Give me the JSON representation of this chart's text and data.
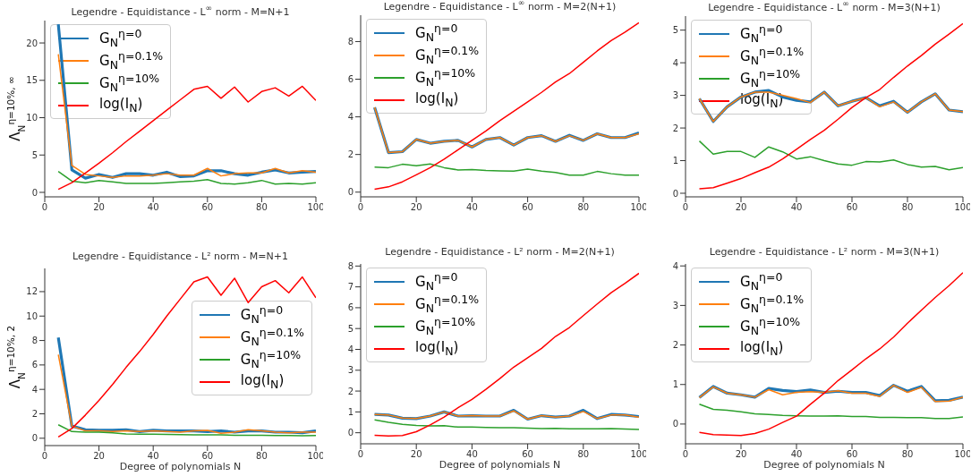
{
  "chart_data": [
    {
      "type": "line",
      "title": "Legendre - Equidistance - L$^{∞}$ norm - M=N+1",
      "ylabel": "Λ$_{N}$$^{η=10%, ∞}$",
      "x": [
        5,
        10,
        15,
        20,
        25,
        30,
        35,
        40,
        45,
        50,
        55,
        60,
        65,
        70,
        75,
        80,
        85,
        90,
        95,
        100
      ],
      "xlim": [
        0,
        100
      ],
      "xticks": [
        0,
        20,
        40,
        60,
        80,
        100
      ],
      "ylim": [
        -0.6,
        23
      ],
      "yticks": [
        0,
        5,
        10,
        15,
        20
      ],
      "legend": "top left",
      "series": [
        {
          "name": "G$_{N}$$^{η=0}$",
          "color": "#1f77b4",
          "values": [
            22.5,
            3.0,
            1.9,
            2.4,
            2.0,
            2.5,
            2.5,
            2.3,
            2.7,
            2.1,
            2.2,
            2.9,
            2.9,
            2.5,
            2.3,
            2.7,
            3.0,
            2.6,
            2.7,
            2.8
          ]
        },
        {
          "name": "G$_{N}$$^{η=0.1%}$",
          "color": "#ff7f0e",
          "values": [
            18.5,
            3.6,
            2.4,
            2.2,
            2.0,
            2.2,
            2.2,
            2.3,
            2.5,
            2.3,
            2.3,
            3.2,
            2.2,
            2.5,
            2.6,
            2.6,
            3.2,
            2.6,
            2.9,
            2.7
          ]
        },
        {
          "name": "G$_{N}$$^{η=10%}$",
          "color": "#2ca02c",
          "values": [
            2.8,
            1.5,
            1.3,
            1.6,
            1.4,
            1.2,
            1.2,
            1.2,
            1.3,
            1.4,
            1.5,
            1.7,
            1.2,
            1.1,
            1.3,
            1.6,
            1.1,
            1.2,
            1.1,
            1.3
          ]
        },
        {
          "name": "log(I$_{N}$)",
          "color": "#ff0000",
          "values": [
            0.4,
            1.3,
            2.6,
            3.9,
            5.3,
            6.8,
            8.2,
            9.6,
            11.0,
            12.4,
            13.8,
            14.2,
            12.6,
            14.1,
            12.1,
            13.5,
            14.0,
            12.9,
            14.2,
            12.3
          ]
        }
      ]
    },
    {
      "type": "line",
      "title": "Legendre - Equidistance - L$^{∞}$ norm - M=2(N+1)",
      "x": [
        5,
        10,
        15,
        20,
        25,
        30,
        35,
        40,
        45,
        50,
        55,
        60,
        65,
        70,
        75,
        80,
        85,
        90,
        95,
        100
      ],
      "xlim": [
        0,
        100
      ],
      "xticks": [
        0,
        20,
        40,
        60,
        80,
        100
      ],
      "ylim": [
        -0.25,
        9.4
      ],
      "yticks": [
        0,
        2,
        4,
        6,
        8
      ],
      "legend": "top left",
      "series": [
        {
          "name": "G$_{N}$$^{η=0}$",
          "color": "#1f77b4",
          "values": [
            4.5,
            2.1,
            2.15,
            2.8,
            2.6,
            2.7,
            2.75,
            2.4,
            2.8,
            2.9,
            2.5,
            2.9,
            3.0,
            2.7,
            3.02,
            2.75,
            3.1,
            2.9,
            2.9,
            3.15
          ]
        },
        {
          "name": "G$_{N}$$^{η=0.1%}$",
          "color": "#ff7f0e",
          "values": [
            4.5,
            2.1,
            2.15,
            2.8,
            2.6,
            2.7,
            2.75,
            2.4,
            2.8,
            2.9,
            2.5,
            2.9,
            3.0,
            2.7,
            3.0,
            2.75,
            3.1,
            2.9,
            2.9,
            3.1
          ]
        },
        {
          "name": "G$_{N}$$^{η=10%}$",
          "color": "#2ca02c",
          "values": [
            1.33,
            1.3,
            1.48,
            1.4,
            1.5,
            1.3,
            1.18,
            1.2,
            1.15,
            1.13,
            1.12,
            1.22,
            1.12,
            1.05,
            0.9,
            0.9,
            1.1,
            0.98,
            0.9,
            0.9
          ]
        },
        {
          "name": "log(I$_{N}$)",
          "color": "#ff0000",
          "values": [
            0.15,
            0.28,
            0.55,
            0.92,
            1.3,
            1.75,
            2.25,
            2.75,
            3.25,
            3.8,
            4.3,
            4.8,
            5.3,
            5.85,
            6.3,
            6.9,
            7.5,
            8.05,
            8.5,
            9.0
          ]
        }
      ]
    },
    {
      "type": "line",
      "title": "Legendre - Equidistance - L$^{∞}$ norm - M=3(N+1)",
      "x": [
        5,
        10,
        15,
        20,
        25,
        30,
        35,
        40,
        45,
        50,
        55,
        60,
        65,
        70,
        75,
        80,
        85,
        90,
        95,
        100
      ],
      "xlim": [
        0,
        100
      ],
      "xticks": [
        0,
        20,
        40,
        60,
        80,
        100
      ],
      "ylim": [
        -0.11,
        5.43
      ],
      "yticks": [
        0,
        1,
        2,
        3,
        4,
        5
      ],
      "legend": "top left",
      "series": [
        {
          "name": "G$_{N}$$^{η=0}$",
          "color": "#1f77b4",
          "values": [
            2.9,
            2.2,
            2.65,
            2.95,
            3.1,
            3.15,
            2.95,
            2.85,
            2.8,
            3.1,
            2.68,
            2.82,
            2.93,
            2.68,
            2.82,
            2.48,
            2.8,
            3.05,
            2.55,
            2.5
          ]
        },
        {
          "name": "G$_{N}$$^{η=0.1%}$",
          "color": "#ff7f0e",
          "values": [
            2.9,
            2.2,
            2.65,
            2.95,
            3.1,
            3.1,
            3.0,
            2.9,
            2.78,
            3.1,
            2.68,
            2.82,
            2.93,
            2.65,
            2.8,
            2.48,
            2.8,
            3.05,
            2.55,
            2.5
          ]
        },
        {
          "name": "G$_{N}$$^{η=10%}$",
          "color": "#2ca02c",
          "values": [
            1.6,
            1.2,
            1.28,
            1.28,
            1.1,
            1.42,
            1.27,
            1.05,
            1.12,
            1.0,
            0.9,
            0.86,
            0.97,
            0.96,
            1.02,
            0.88,
            0.8,
            0.82,
            0.72,
            0.79
          ]
        },
        {
          "name": "log(I$_{N}$)",
          "color": "#ff0000",
          "values": [
            0.14,
            0.17,
            0.31,
            0.45,
            0.63,
            0.8,
            1.05,
            1.35,
            1.65,
            1.93,
            2.27,
            2.63,
            2.93,
            3.18,
            3.55,
            3.9,
            4.22,
            4.57,
            4.88,
            5.2
          ]
        }
      ]
    },
    {
      "type": "line",
      "title": "Legendre - Equidistance - L² norm - M=N+1",
      "xlabel": "Degree of polynomials N",
      "ylabel": "Λ$_{N}$$^{η=10%, 2}$",
      "x": [
        5,
        10,
        15,
        20,
        25,
        30,
        35,
        40,
        45,
        50,
        55,
        60,
        65,
        70,
        75,
        80,
        85,
        90,
        95,
        100
      ],
      "xlim": [
        0,
        100
      ],
      "xticks": [
        0,
        20,
        40,
        60,
        80,
        100
      ],
      "ylim": [
        -0.6,
        13.9
      ],
      "yticks": [
        0,
        2,
        4,
        6,
        8,
        10,
        12
      ],
      "legend": "right",
      "series": [
        {
          "name": "G$_{N}$$^{η=0}$",
          "color": "#1f77b4",
          "values": [
            8.25,
            1.0,
            0.7,
            0.65,
            0.65,
            0.7,
            0.55,
            0.65,
            0.6,
            0.6,
            0.6,
            0.55,
            0.6,
            0.5,
            0.6,
            0.6,
            0.5,
            0.5,
            0.45,
            0.6
          ]
        },
        {
          "name": "G$_{N}$$^{η=0.1%}$",
          "color": "#ff7f0e",
          "values": [
            6.85,
            1.0,
            0.6,
            0.6,
            0.55,
            0.6,
            0.55,
            0.6,
            0.55,
            0.5,
            0.6,
            0.65,
            0.4,
            0.5,
            0.7,
            0.6,
            0.5,
            0.45,
            0.5,
            0.5
          ]
        },
        {
          "name": "G$_{N}$$^{η=10%}$",
          "color": "#2ca02c",
          "values": [
            1.1,
            0.55,
            0.5,
            0.5,
            0.45,
            0.35,
            0.33,
            0.33,
            0.32,
            0.3,
            0.28,
            0.28,
            0.28,
            0.25,
            0.25,
            0.25,
            0.22,
            0.22,
            0.2,
            0.22
          ]
        },
        {
          "name": "log(I$_{N}$)",
          "color": "#ff0000",
          "values": [
            0.1,
            0.8,
            1.9,
            3.1,
            4.4,
            5.8,
            7.1,
            8.5,
            10.0,
            11.4,
            12.8,
            13.2,
            11.7,
            13.1,
            11.1,
            12.4,
            12.9,
            11.9,
            13.2,
            11.5
          ]
        }
      ]
    },
    {
      "type": "line",
      "title": "Legendre - Equidistance - L² norm - M=2(N+1)",
      "xlabel": "Degree of polynomials N",
      "x": [
        5,
        10,
        15,
        20,
        25,
        30,
        35,
        40,
        45,
        50,
        55,
        60,
        65,
        70,
        75,
        80,
        85,
        90,
        95,
        100
      ],
      "xlim": [
        0,
        100
      ],
      "xticks": [
        0,
        20,
        40,
        60,
        80,
        100
      ],
      "ylim": [
        -0.53,
        8.1
      ],
      "yticks": [
        0,
        1,
        2,
        3,
        4,
        5,
        6,
        7,
        8
      ],
      "legend": "top left",
      "series": [
        {
          "name": "G$_{N}$$^{η=0}$",
          "color": "#1f77b4",
          "values": [
            0.88,
            0.85,
            0.7,
            0.68,
            0.8,
            1.0,
            0.8,
            0.82,
            0.8,
            0.8,
            1.08,
            0.65,
            0.82,
            0.75,
            0.8,
            1.08,
            0.68,
            0.88,
            0.85,
            0.78
          ]
        },
        {
          "name": "G$_{N}$$^{η=0.1%}$",
          "color": "#ff7f0e",
          "values": [
            0.88,
            0.85,
            0.7,
            0.68,
            0.8,
            1.0,
            0.8,
            0.82,
            0.8,
            0.8,
            1.05,
            0.65,
            0.82,
            0.75,
            0.8,
            1.02,
            0.68,
            0.85,
            0.85,
            0.75
          ]
        },
        {
          "name": "G$_{N}$$^{η=10%}$",
          "color": "#2ca02c",
          "values": [
            0.62,
            0.5,
            0.4,
            0.35,
            0.33,
            0.34,
            0.27,
            0.27,
            0.25,
            0.24,
            0.24,
            0.22,
            0.2,
            0.21,
            0.19,
            0.19,
            0.19,
            0.2,
            0.18,
            0.16
          ]
        },
        {
          "name": "log(I$_{N}$)",
          "color": "#ff0000",
          "values": [
            -0.12,
            -0.15,
            -0.13,
            0.05,
            0.38,
            0.75,
            1.2,
            1.6,
            2.08,
            2.6,
            3.15,
            3.6,
            4.05,
            4.62,
            5.05,
            5.62,
            6.18,
            6.72,
            7.17,
            7.65
          ]
        }
      ]
    },
    {
      "type": "line",
      "title": "Legendre - Equidistance - L² norm - M=3(N+1)",
      "xlabel": "Degree of polynomials N",
      "x": [
        5,
        10,
        15,
        20,
        25,
        30,
        35,
        40,
        45,
        50,
        55,
        60,
        65,
        70,
        75,
        80,
        85,
        90,
        95,
        100
      ],
      "xlim": [
        0,
        100
      ],
      "xticks": [
        0,
        20,
        40,
        60,
        80,
        100
      ],
      "ylim": [
        -0.5,
        4.05
      ],
      "yticks": [
        0,
        1,
        2,
        3,
        4
      ],
      "legend": "top left",
      "series": [
        {
          "name": "G$_{N}$$^{η=0}$",
          "color": "#1f77b4",
          "values": [
            0.67,
            0.95,
            0.78,
            0.74,
            0.68,
            0.9,
            0.85,
            0.82,
            0.86,
            0.8,
            0.83,
            0.8,
            0.8,
            0.72,
            0.98,
            0.83,
            0.95,
            0.59,
            0.6,
            0.68
          ]
        },
        {
          "name": "G$_{N}$$^{η=0.1%}$",
          "color": "#ff7f0e",
          "values": [
            0.67,
            0.94,
            0.78,
            0.74,
            0.68,
            0.87,
            0.74,
            0.8,
            0.82,
            0.8,
            0.84,
            0.78,
            0.78,
            0.7,
            0.98,
            0.8,
            0.93,
            0.57,
            0.58,
            0.68
          ]
        },
        {
          "name": "G$_{N}$$^{η=10%}$",
          "color": "#2ca02c",
          "values": [
            0.5,
            0.37,
            0.35,
            0.31,
            0.26,
            0.24,
            0.22,
            0.21,
            0.2,
            0.2,
            0.21,
            0.19,
            0.19,
            0.17,
            0.17,
            0.16,
            0.16,
            0.14,
            0.14,
            0.18
          ]
        },
        {
          "name": "log(I$_{N}$)",
          "color": "#ff0000",
          "values": [
            -0.21,
            -0.27,
            -0.28,
            -0.29,
            -0.24,
            -0.13,
            0.04,
            0.2,
            0.5,
            0.78,
            1.1,
            1.37,
            1.65,
            1.9,
            2.2,
            2.55,
            2.88,
            3.2,
            3.5,
            3.83
          ]
        }
      ]
    }
  ]
}
